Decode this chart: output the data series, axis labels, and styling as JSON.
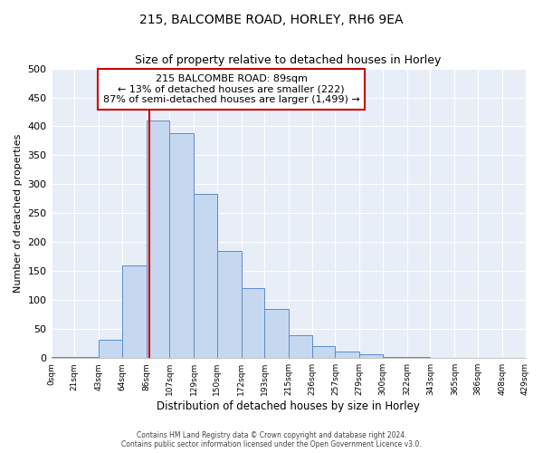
{
  "title1": "215, BALCOMBE ROAD, HORLEY, RH6 9EA",
  "title2": "Size of property relative to detached houses in Horley",
  "xlabel": "Distribution of detached houses by size in Horley",
  "ylabel": "Number of detached properties",
  "annotation_line1": "215 BALCOMBE ROAD: 89sqm",
  "annotation_line2": "← 13% of detached houses are smaller (222)",
  "annotation_line3": "87% of semi-detached houses are larger (1,499) →",
  "property_size_sqm": 89,
  "bin_edges": [
    0,
    21,
    43,
    64,
    86,
    107,
    129,
    150,
    172,
    193,
    215,
    236,
    257,
    279,
    300,
    322,
    343,
    365,
    386,
    408,
    429
  ],
  "bar_values": [
    2,
    2,
    32,
    160,
    410,
    388,
    283,
    185,
    120,
    85,
    40,
    20,
    12,
    6,
    2,
    2,
    1,
    1,
    1,
    1
  ],
  "bar_color": "#c5d8f0",
  "bar_edge_color": "#5b8cc8",
  "ref_line_color": "#cc0000",
  "annotation_box_edge_color": "#cc0000",
  "background_color": "#e8eef8",
  "grid_color": "#ffffff",
  "footer_line1": "Contains HM Land Registry data © Crown copyright and database right 2024.",
  "footer_line2": "Contains public sector information licensed under the Open Government Licence v3.0.",
  "ylim": [
    0,
    500
  ],
  "yticks": [
    0,
    50,
    100,
    150,
    200,
    250,
    300,
    350,
    400,
    450,
    500
  ]
}
